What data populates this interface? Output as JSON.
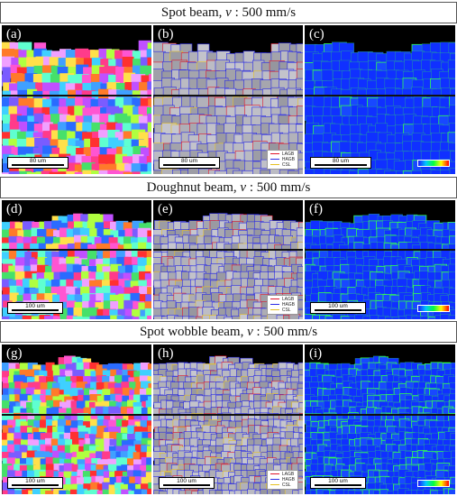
{
  "rows": [
    {
      "title_prefix": "Spot beam, ",
      "title_var": "v",
      "title_suffix": " : 500 mm/s",
      "panels": [
        {
          "label": "(a)",
          "scale": "80 um"
        },
        {
          "label": "(b)",
          "scale": "80 um"
        },
        {
          "label": "(c)",
          "scale": "80 um"
        }
      ]
    },
    {
      "title_prefix": "Doughnut beam, ",
      "title_var": "v",
      "title_suffix": " : 500 mm/s",
      "panels": [
        {
          "label": "(d)",
          "scale": "100 um"
        },
        {
          "label": "(e)",
          "scale": ""
        },
        {
          "label": "(f)",
          "scale": "100 um"
        }
      ]
    },
    {
      "title_prefix": "Spot wobble beam, ",
      "title_var": "v",
      "title_suffix": " : 500 mm/s",
      "panels": [
        {
          "label": "(g)",
          "scale": "100 um"
        },
        {
          "label": "(h)",
          "scale": "100 um"
        },
        {
          "label": "(i)",
          "scale": "100 um"
        }
      ]
    }
  ],
  "legend": {
    "lagb": "LAGB",
    "hagb": "HAGB",
    "csl": "CSL"
  },
  "colors": {
    "lagb": "#e0142a",
    "hagb": "#2a2ae6",
    "csl": "#e6c020",
    "kam_base": "#1030ff",
    "kam_high": "#20ff40"
  }
}
